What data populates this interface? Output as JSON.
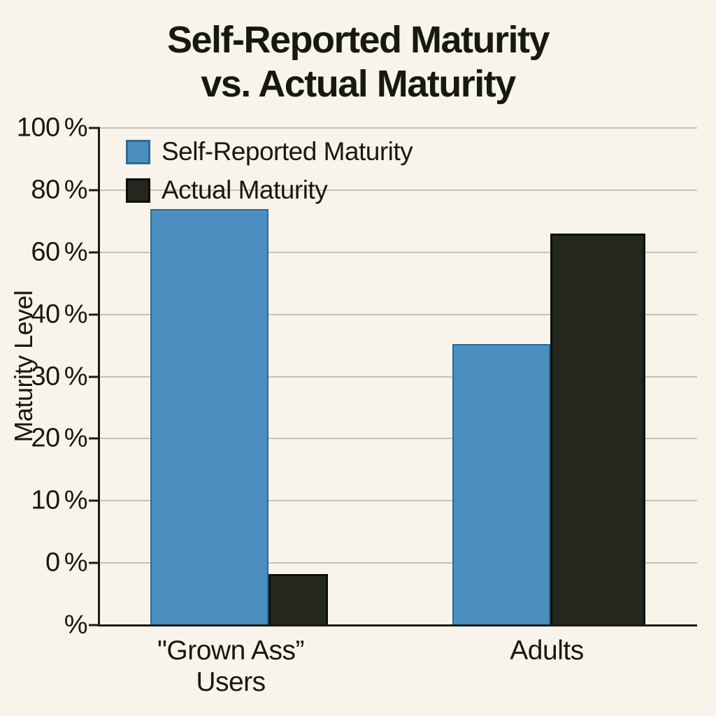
{
  "title": {
    "line1": "Self-Reported Maturity",
    "line2": "vs. Actual Maturity"
  },
  "colors": {
    "background": "#f8f4ec",
    "text": "#16190f",
    "grid": "#c5c2ba",
    "axis": "#1a1d14",
    "blue": "#4a8fbf",
    "black": "#23271d"
  },
  "chart_data": {
    "type": "bar",
    "title": "Self-Reported Maturity vs. Actual Maturity",
    "ylabel": "Maturity Level",
    "xlabel": "",
    "categories": [
      "\"Grown Ass” Users",
      "Adults"
    ],
    "category_label_lines": [
      [
        "\"Grown Ass”",
        "Users"
      ],
      [
        "Adults"
      ]
    ],
    "y_tick_labels_bottom_to_top": [
      "%",
      "0 %",
      "10 %",
      "20 %",
      "30 %",
      "40 %",
      "60 %",
      "80 %",
      "100 %"
    ],
    "y_axis_note": "Joke axis: nine evenly spaced ticks, values step by 10 from 0-40 then by 20 from 40-100; bottom tick is just '%', so bars start below 0 %",
    "grid": true,
    "legend_position": "top-left inside plot",
    "series": [
      {
        "name": "Self-Reported Maturity",
        "fill": "#4a8fbf",
        "border": "#2f6a92",
        "border_px": 2,
        "values_display": [
          "≈74%",
          "≈35%"
        ],
        "bar_tops_tick_units": [
          6.7,
          4.52
        ]
      },
      {
        "name": "Actual Maturity",
        "fill": "#23271d",
        "border": "#0c0f09",
        "border_px": 3,
        "values_display": [
          "just below 0%",
          "≈66%"
        ],
        "bar_tops_tick_units": [
          0.82,
          6.3
        ]
      }
    ]
  }
}
